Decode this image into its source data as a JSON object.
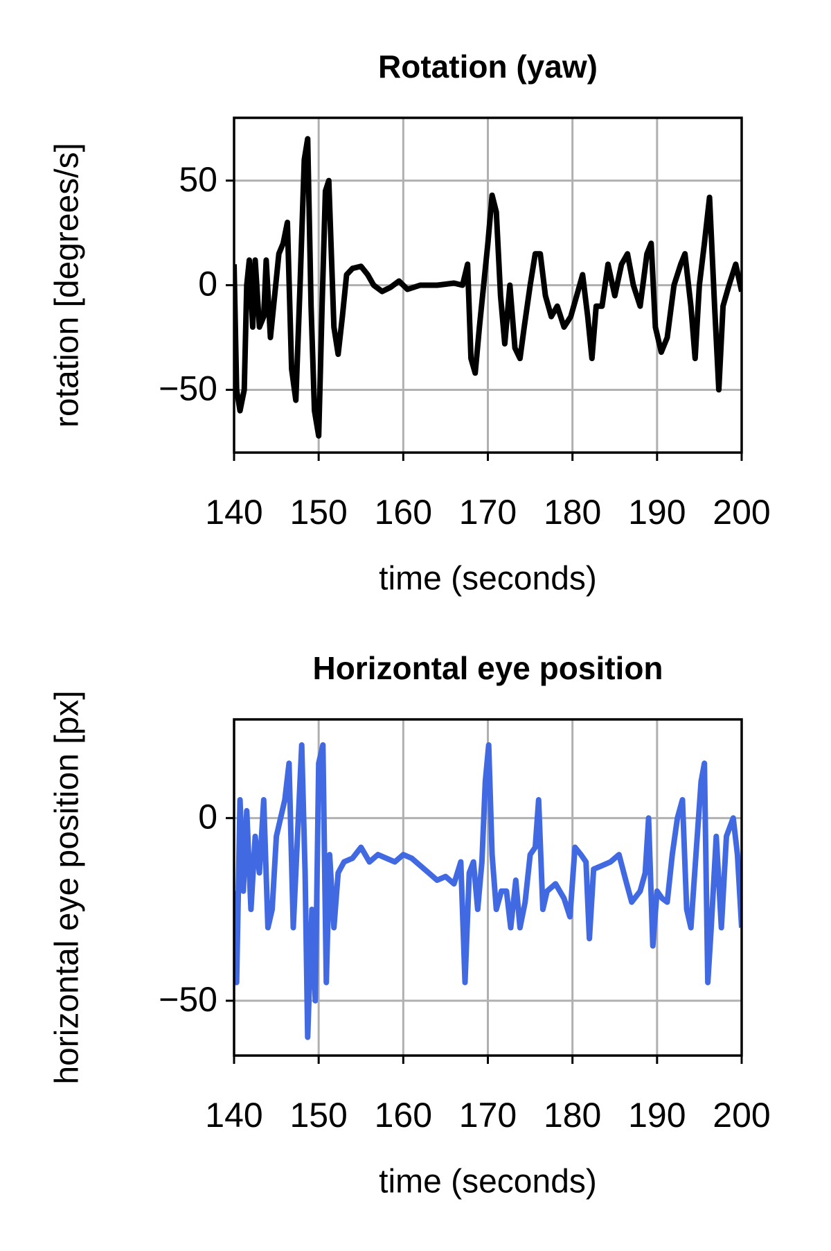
{
  "chart_data": [
    {
      "type": "line",
      "title": "Rotation (yaw)",
      "xlabel": "time (seconds)",
      "ylabel": "rotation [degrees/s]",
      "color": "#000000",
      "grid": true,
      "xlim": [
        140,
        200
      ],
      "xticks": [
        140,
        150,
        160,
        170,
        180,
        190,
        200
      ],
      "ylim": [
        -80,
        80
      ],
      "yticks": [
        {
          "value": -50,
          "label": "−50"
        },
        0,
        50
      ],
      "x": [
        140,
        140.3,
        140.7,
        141.2,
        141.5,
        141.8,
        142.2,
        142.5,
        143,
        143.5,
        143.8,
        144.3,
        144.8,
        145.3,
        145.8,
        146.3,
        146.8,
        147.3,
        147.8,
        148.3,
        148.7,
        149.1,
        149.5,
        150,
        150.4,
        150.8,
        151.2,
        151.8,
        152.3,
        152.8,
        153.3,
        154,
        155,
        155.8,
        156.5,
        157.5,
        158.5,
        159.5,
        160.5,
        162,
        164,
        166,
        167,
        167.6,
        168,
        168.5,
        169,
        169.5,
        170,
        170.5,
        171,
        171.5,
        172,
        172.6,
        173.2,
        173.8,
        174.3,
        175,
        175.6,
        176.2,
        176.8,
        177.5,
        178.2,
        179,
        179.8,
        180.5,
        181.2,
        181.8,
        182.3,
        182.8,
        183.5,
        184.2,
        185,
        185.8,
        186.5,
        187.2,
        188,
        188.8,
        189.3,
        189.8,
        190.5,
        191.2,
        192,
        192.8,
        193.3,
        194,
        194.5,
        195,
        195.6,
        196.2,
        196.8,
        197.3,
        197.8,
        198.5,
        199.3,
        200
      ],
      "values": [
        10,
        -50,
        -60,
        -50,
        0,
        12,
        -20,
        12,
        -20,
        -15,
        12,
        -25,
        -5,
        15,
        20,
        30,
        -40,
        -55,
        0,
        60,
        70,
        -10,
        -60,
        -72,
        -10,
        45,
        50,
        -20,
        -33,
        -15,
        5,
        8,
        9,
        5,
        0,
        -3,
        -1,
        2,
        -2,
        0,
        0,
        1,
        0,
        10,
        -35,
        -42,
        -20,
        0,
        20,
        43,
        35,
        -5,
        -28,
        0,
        -30,
        -35,
        -20,
        0,
        15,
        15,
        -5,
        -15,
        -10,
        -20,
        -15,
        -5,
        5,
        -15,
        -35,
        -10,
        -10,
        10,
        -5,
        10,
        15,
        0,
        -10,
        15,
        20,
        -20,
        -32,
        -25,
        0,
        10,
        15,
        -10,
        -35,
        0,
        20,
        42,
        -10,
        -50,
        -10,
        0,
        10,
        -3
      ]
    },
    {
      "type": "line",
      "title": "Horizontal eye position",
      "xlabel": "time (seconds)",
      "ylabel": "horizontal eye position [px]",
      "color": "#4169e1",
      "grid": true,
      "xlim": [
        140,
        200
      ],
      "xticks": [
        140,
        150,
        160,
        170,
        180,
        190,
        200
      ],
      "ylim": [
        -65,
        27
      ],
      "yticks": [
        {
          "value": -50,
          "label": "−50"
        },
        0
      ],
      "x": [
        140,
        140.3,
        140.7,
        141.1,
        141.5,
        142,
        142.5,
        143,
        143.5,
        144,
        144.5,
        145,
        145.5,
        146,
        146.5,
        147,
        147.5,
        148,
        148.4,
        148.7,
        149.2,
        149.6,
        150,
        150.5,
        150.9,
        151.3,
        151.8,
        152.3,
        153,
        154,
        155,
        156,
        157,
        158,
        159,
        160,
        161,
        162,
        163,
        164,
        165,
        166,
        166.8,
        167.3,
        167.8,
        168.3,
        168.8,
        169.3,
        169.7,
        170.1,
        170.5,
        171,
        171.6,
        172.2,
        172.7,
        173.3,
        173.8,
        174.4,
        175,
        175.6,
        176,
        176.5,
        177,
        178,
        179,
        179.7,
        180.3,
        181,
        181.6,
        182,
        182.5,
        183.5,
        184.5,
        185.5,
        186.3,
        187,
        188,
        188.6,
        189,
        189.5,
        190,
        190.6,
        191.2,
        191.8,
        192.4,
        193,
        193.5,
        194,
        194.6,
        195.2,
        195.6,
        196,
        196.4,
        197,
        197.6,
        198.2,
        199,
        199.5,
        200
      ],
      "values": [
        -20,
        -45,
        5,
        -20,
        2,
        -25,
        -5,
        -15,
        5,
        -30,
        -25,
        -5,
        0,
        5,
        15,
        -30,
        -5,
        20,
        -15,
        -60,
        -25,
        -50,
        15,
        20,
        -45,
        -10,
        -30,
        -15,
        -12,
        -11,
        -8,
        -12,
        -10,
        -11,
        -12,
        -10,
        -11,
        -13,
        -15,
        -17,
        -16,
        -18,
        -12,
        -45,
        -15,
        -12,
        -25,
        -12,
        10,
        20,
        -10,
        -25,
        -20,
        -20,
        -30,
        -17,
        -30,
        -23,
        -10,
        -8,
        5,
        -25,
        -20,
        -18,
        -22,
        -27,
        -8,
        -10,
        -12,
        -33,
        -14,
        -13,
        -12,
        -10,
        -17,
        -23,
        -20,
        -15,
        0,
        -35,
        -20,
        -22,
        -23,
        -10,
        0,
        5,
        -25,
        -30,
        -10,
        10,
        15,
        -45,
        -30,
        -5,
        -30,
        -5,
        0,
        -10,
        -30
      ]
    }
  ]
}
